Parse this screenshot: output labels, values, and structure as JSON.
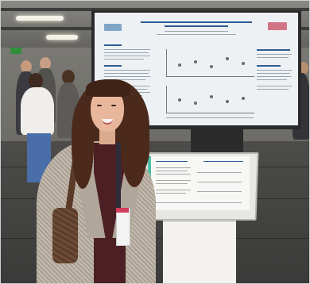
{
  "photo": {
    "description_kind": "photo of presenter beside poster kiosk",
    "colors": {
      "hall": "#6f6e6a",
      "floor": "#3a3a39",
      "screen": "#eef1f4",
      "accent_teal": "#4fbfa8",
      "accent_red": "#d23c5a",
      "hair": "#4a2a1c",
      "coat": "#bdb3a6"
    }
  }
}
